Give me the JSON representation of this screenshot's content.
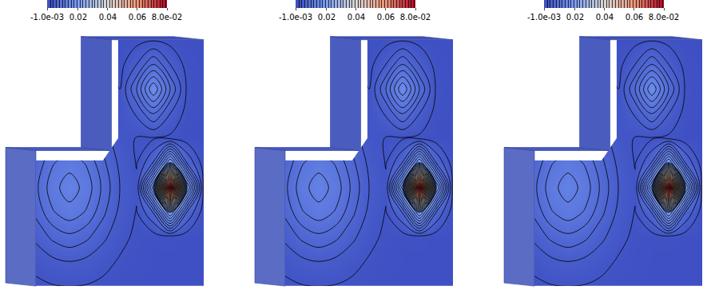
{
  "chart_data": [
    {
      "type": "contour",
      "x": [
        0,
        0.1,
        0.2,
        0.3,
        0.4,
        0.5,
        0.6,
        0.7,
        0.8,
        0.9,
        1
      ],
      "y": [
        0,
        0.1,
        0.2,
        0.3,
        0.4,
        0.5,
        0.6,
        0.7,
        0.8,
        0.9,
        1
      ],
      "z": [
        [
          0.0006,
          0.0009,
          0.001,
          0.0009,
          0.0006,
          0.0003,
          0.0001,
          0,
          0,
          0,
          0
        ],
        [
          0.0016,
          0.0025,
          0.003,
          0.0025,
          0.0016,
          0.0008,
          0.0003,
          0.0001,
          0,
          0,
          0
        ],
        [
          0.0035,
          0.0055,
          0.0065,
          0.0055,
          0.0035,
          0.0016,
          0.0006,
          0.0001,
          0.0003,
          0,
          0
        ],
        [
          0.0055,
          0.0088,
          0.0103,
          0.0088,
          0.0055,
          0.0025,
          0.0009,
          0.0052,
          0.02,
          0.005,
          0
        ],
        [
          0.0065,
          0.0103,
          0.012,
          0.0103,
          0.0065,
          0.003,
          0.0013,
          0.0203,
          0.08,
          0.02,
          0.0003
        ],
        [
          0.0055,
          0.0088,
          0.0103,
          0.0088,
          0.0055,
          0.0025,
          0.0009,
          0.0052,
          0.02,
          0.005,
          0
        ],
        [
          null,
          null,
          null,
          null,
          null,
          0.0016,
          0.0009,
          0.0008,
          0.0006,
          0,
          0
        ],
        [
          null,
          null,
          null,
          null,
          null,
          0.0011,
          0.0033,
          0.0071,
          0.003,
          0.0003,
          0
        ],
        [
          null,
          null,
          null,
          null,
          null,
          0.001,
          0.007,
          0.015,
          0.007,
          0.0007,
          0
        ],
        [
          null,
          null,
          null,
          null,
          null,
          0.0003,
          0.003,
          0.007,
          0.003,
          0.0003,
          0
        ],
        [
          null,
          null,
          null,
          null,
          null,
          0,
          0.0003,
          0.0007,
          0.0003,
          0,
          0
        ]
      ],
      "zlim": [
        -0.001,
        0.08
      ],
      "colorbar_ticks": [
        {
          "value": -0.001,
          "label": "-1.0e-03"
        },
        0.02,
        0.04,
        0.06,
        {
          "value": 0.08,
          "label": "8.0e-02"
        }
      ],
      "levels": {
        "start": 0.001,
        "end": 0.08,
        "size": 0.002
      },
      "xlim": [
        0,
        1
      ],
      "ylim": [
        0,
        1
      ],
      "tick_labels": false
    },
    {
      "type": "contour",
      "x": [
        0,
        0.1,
        0.2,
        0.3,
        0.4,
        0.5,
        0.6,
        0.7,
        0.8,
        0.9,
        1
      ],
      "y": [
        0,
        0.1,
        0.2,
        0.3,
        0.4,
        0.5,
        0.6,
        0.7,
        0.8,
        0.9,
        1
      ],
      "z": [
        [
          0.0006,
          0.0009,
          0.001,
          0.0009,
          0.0006,
          0.0003,
          0.0001,
          0,
          0,
          0,
          0
        ],
        [
          0.0016,
          0.0025,
          0.003,
          0.0025,
          0.0016,
          0.0008,
          0.0003,
          0.0001,
          0,
          0,
          0
        ],
        [
          0.0035,
          0.0055,
          0.0065,
          0.0055,
          0.0035,
          0.0016,
          0.0006,
          0.0001,
          0.0003,
          0,
          0
        ],
        [
          0.0055,
          0.0088,
          0.0103,
          0.0088,
          0.0055,
          0.0025,
          0.0009,
          0.0052,
          0.02,
          0.005,
          0
        ],
        [
          0.0065,
          0.0103,
          0.012,
          0.0103,
          0.0065,
          0.003,
          0.0013,
          0.0203,
          0.08,
          0.02,
          0.0003
        ],
        [
          0.0055,
          0.0088,
          0.0103,
          0.0088,
          0.0055,
          0.0025,
          0.0009,
          0.0052,
          0.02,
          0.005,
          0
        ],
        [
          null,
          null,
          null,
          null,
          null,
          0.0016,
          0.0009,
          0.0008,
          0.0006,
          0,
          0
        ],
        [
          null,
          null,
          null,
          null,
          null,
          0.0011,
          0.0033,
          0.0071,
          0.003,
          0.0003,
          0
        ],
        [
          null,
          null,
          null,
          null,
          null,
          0.001,
          0.007,
          0.015,
          0.007,
          0.0007,
          0
        ],
        [
          null,
          null,
          null,
          null,
          null,
          0.0003,
          0.003,
          0.007,
          0.003,
          0.0003,
          0
        ],
        [
          null,
          null,
          null,
          null,
          null,
          0,
          0.0003,
          0.0007,
          0.0003,
          0,
          0
        ]
      ],
      "zlim": [
        -0.001,
        0.08
      ],
      "colorbar_ticks": [
        {
          "value": -0.001,
          "label": "-1.0e-03"
        },
        0.02,
        0.04,
        0.06,
        {
          "value": 0.08,
          "label": "8.0e-02"
        }
      ],
      "levels": {
        "start": 0.001,
        "end": 0.08,
        "size": 0.002
      },
      "xlim": [
        0,
        1
      ],
      "ylim": [
        0,
        1
      ],
      "tick_labels": false
    },
    {
      "type": "contour",
      "x": [
        0,
        0.1,
        0.2,
        0.3,
        0.4,
        0.5,
        0.6,
        0.7,
        0.8,
        0.9,
        1
      ],
      "y": [
        0,
        0.1,
        0.2,
        0.3,
        0.4,
        0.5,
        0.6,
        0.7,
        0.8,
        0.9,
        1
      ],
      "z": [
        [
          0.0006,
          0.0009,
          0.001,
          0.0009,
          0.0006,
          0.0003,
          0.0001,
          0,
          0,
          0,
          0
        ],
        [
          0.0016,
          0.0025,
          0.003,
          0.0025,
          0.0016,
          0.0008,
          0.0003,
          0.0001,
          0,
          0,
          0
        ],
        [
          0.0035,
          0.0055,
          0.0065,
          0.0055,
          0.0035,
          0.0016,
          0.0006,
          0.0001,
          0.0003,
          0,
          0
        ],
        [
          0.0055,
          0.0088,
          0.0103,
          0.0088,
          0.0055,
          0.0025,
          0.0009,
          0.0052,
          0.02,
          0.005,
          0
        ],
        [
          0.0065,
          0.0103,
          0.012,
          0.0103,
          0.0065,
          0.003,
          0.0013,
          0.0203,
          0.08,
          0.02,
          0.0003
        ],
        [
          0.0055,
          0.0088,
          0.0103,
          0.0088,
          0.0055,
          0.0025,
          0.0009,
          0.0052,
          0.02,
          0.005,
          0
        ],
        [
          null,
          null,
          null,
          null,
          null,
          0.0016,
          0.0009,
          0.0008,
          0.0006,
          0,
          0
        ],
        [
          null,
          null,
          null,
          null,
          null,
          0.0011,
          0.0033,
          0.0071,
          0.003,
          0.0003,
          0
        ],
        [
          null,
          null,
          null,
          null,
          null,
          0.001,
          0.007,
          0.015,
          0.007,
          0.0007,
          0
        ],
        [
          null,
          null,
          null,
          null,
          null,
          0.0003,
          0.003,
          0.007,
          0.003,
          0.0003,
          0
        ],
        [
          null,
          null,
          null,
          null,
          null,
          0,
          0.0003,
          0.0007,
          0.0003,
          0,
          0
        ]
      ],
      "zlim": [
        -0.001,
        0.08
      ],
      "colorbar_ticks": [
        {
          "value": -0.001,
          "label": "-1.0e-03"
        },
        0.02,
        0.04,
        0.06,
        {
          "value": 0.08,
          "label": "8.0e-02"
        }
      ],
      "levels": {
        "start": 0.001,
        "end": 0.08,
        "size": 0.002
      },
      "xlim": [
        0,
        1
      ],
      "ylim": [
        0,
        1
      ],
      "tick_labels": false
    }
  ]
}
